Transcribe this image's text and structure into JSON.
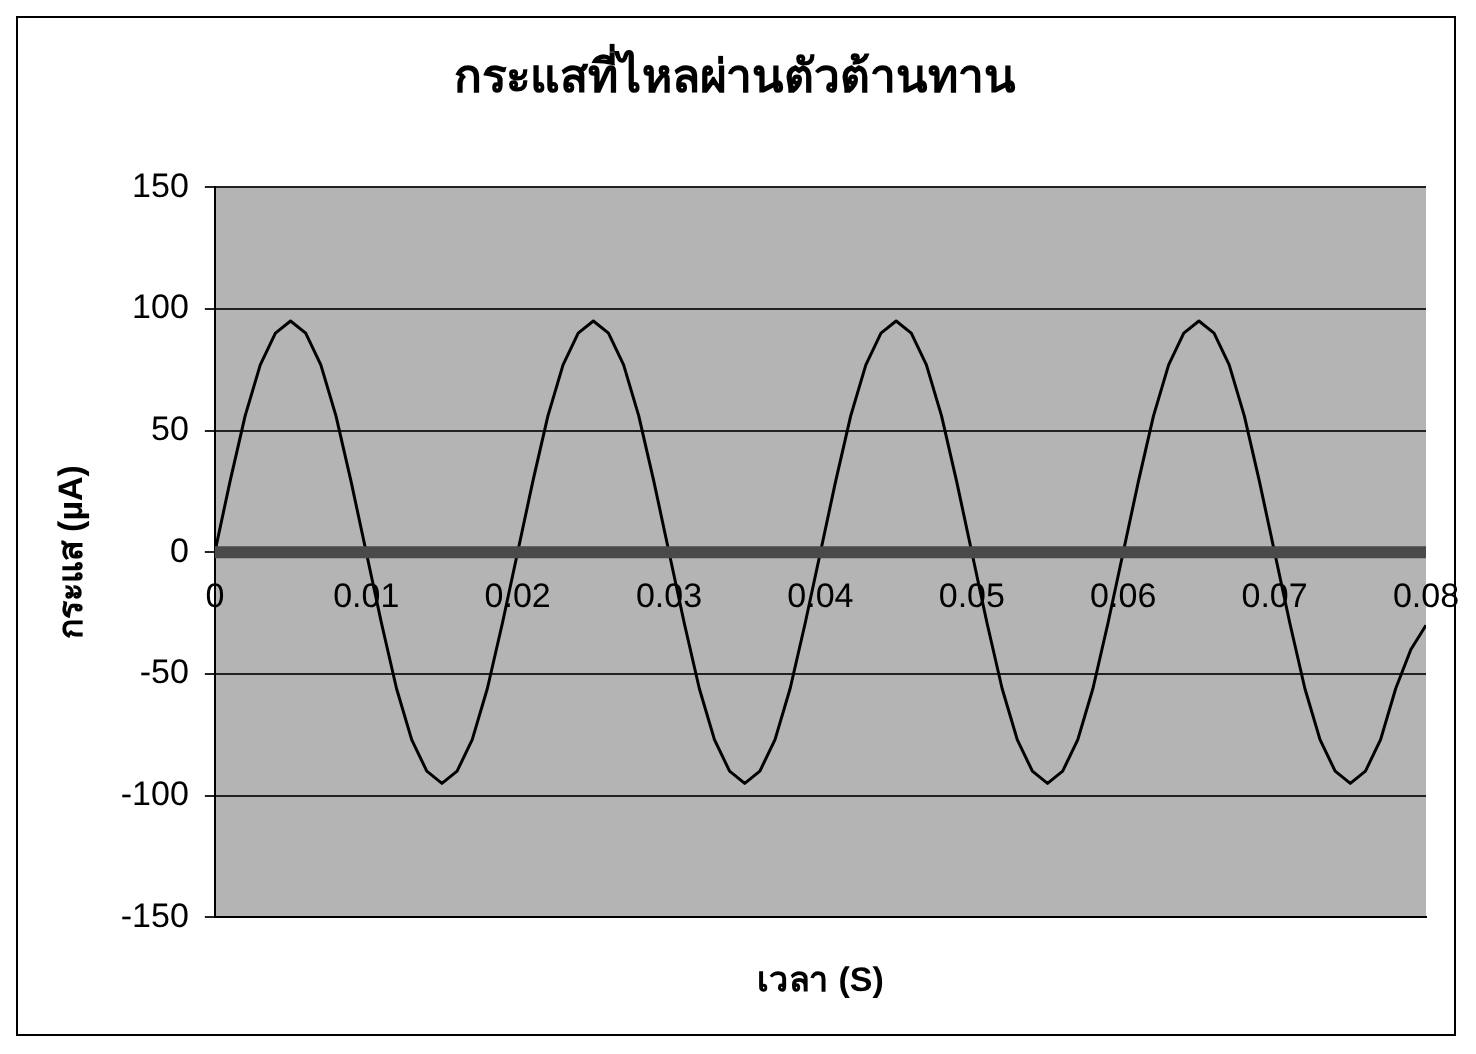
{
  "chart_data": {
    "type": "line",
    "title": "กระแสที่ไหลผ่านตัวต้านทาน",
    "xlabel": "เวลา (S)",
    "ylabel": "กระแส (µA)",
    "x": [
      0,
      0.001,
      0.002,
      0.003,
      0.004,
      0.005,
      0.006,
      0.007,
      0.008,
      0.009,
      0.01,
      0.011,
      0.012,
      0.013,
      0.014,
      0.015,
      0.016,
      0.017,
      0.018,
      0.019,
      0.02,
      0.021,
      0.022,
      0.023,
      0.024,
      0.025,
      0.026,
      0.027,
      0.028,
      0.029,
      0.03,
      0.031,
      0.032,
      0.033,
      0.034,
      0.035,
      0.036,
      0.037,
      0.038,
      0.039,
      0.04,
      0.041,
      0.042,
      0.043,
      0.044,
      0.045,
      0.046,
      0.047,
      0.048,
      0.049,
      0.05,
      0.051,
      0.052,
      0.053,
      0.054,
      0.055,
      0.056,
      0.057,
      0.058,
      0.059,
      0.06,
      0.061,
      0.062,
      0.063,
      0.064,
      0.065,
      0.066,
      0.067,
      0.068,
      0.069,
      0.07,
      0.071,
      0.072,
      0.073,
      0.074,
      0.075,
      0.076,
      0.077,
      0.078,
      0.079,
      0.08
    ],
    "series": [
      {
        "color": "#000000",
        "values": [
          0,
          29,
          56,
          77,
          90,
          95,
          90,
          77,
          56,
          29,
          0,
          -29,
          -56,
          -77,
          -90,
          -95,
          -90,
          -77,
          -56,
          -29,
          0,
          29,
          56,
          77,
          90,
          95,
          90,
          77,
          56,
          29,
          0,
          -29,
          -56,
          -77,
          -90,
          -95,
          -90,
          -77,
          -56,
          -29,
          0,
          29,
          56,
          77,
          90,
          95,
          90,
          77,
          56,
          29,
          0,
          -29,
          -56,
          -77,
          -90,
          -95,
          -90,
          -77,
          -56,
          -29,
          0,
          29,
          56,
          77,
          90,
          95,
          90,
          77,
          56,
          29,
          0,
          -29,
          -56,
          -77,
          -90,
          -95,
          -90,
          -77,
          -56,
          -40,
          -30
        ]
      }
    ],
    "xlim": [
      0,
      0.08
    ],
    "xticks": [
      0,
      0.01,
      0.02,
      0.03,
      0.04,
      0.05,
      0.06,
      0.07,
      0.08
    ],
    "ylim": [
      -150,
      150
    ],
    "yticks": [
      -150,
      -100,
      -50,
      0,
      50,
      100,
      150
    ],
    "grid": "y",
    "legend": false,
    "marker": "none",
    "line_style": "solid"
  }
}
